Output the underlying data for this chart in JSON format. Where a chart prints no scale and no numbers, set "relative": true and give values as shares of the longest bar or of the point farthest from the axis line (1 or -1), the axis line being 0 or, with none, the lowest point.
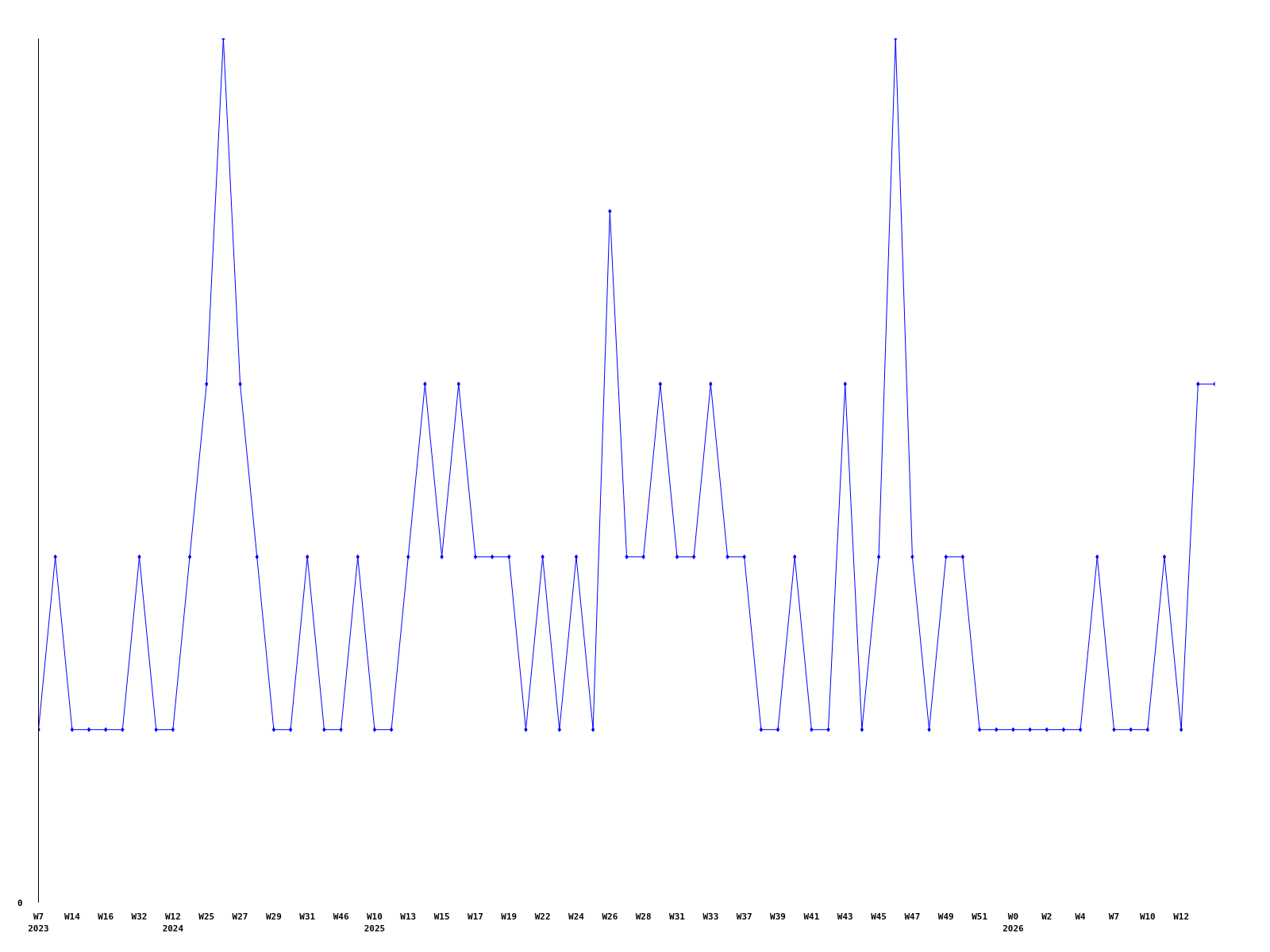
{
  "chart_data": {
    "type": "line",
    "relative": true,
    "color": "#0000ff",
    "marker": "diamond",
    "categories": [
      "W7\n2023",
      null,
      "W14",
      null,
      "W16",
      null,
      "W32",
      null,
      "W12\n2024",
      null,
      "W25",
      null,
      "W27",
      null,
      "W29",
      null,
      "W31",
      null,
      "W46",
      null,
      "W10\n2025",
      null,
      "W13",
      null,
      "W15",
      null,
      "W17",
      null,
      "W19",
      null,
      "W22",
      null,
      "W24",
      null,
      "W26",
      null,
      "W28",
      null,
      "W31",
      null,
      "W33",
      null,
      "W37",
      null,
      "W39",
      null,
      "W41",
      null,
      "W43",
      null,
      "W45",
      null,
      "W47",
      null,
      "W49",
      null,
      "W51",
      null,
      "W0\n2026",
      null,
      "W2",
      null,
      "W4",
      null,
      "W7",
      null,
      "W10",
      null,
      "W12",
      null,
      null
    ],
    "values": [
      0.2,
      0.4,
      0.2,
      0.2,
      0.2,
      0.2,
      0.4,
      0.2,
      0.2,
      0.4,
      0.6,
      1,
      0.6,
      0.4,
      0.2,
      0.2,
      0.4,
      0.2,
      0.2,
      0.4,
      0.2,
      0.2,
      0.4,
      0.6,
      0.4,
      0.6,
      0.4,
      0.4,
      0.4,
      0.2,
      0.4,
      0.2,
      0.4,
      0.2,
      0.8,
      0.4,
      0.4,
      0.6,
      0.4,
      0.4,
      0.6,
      0.4,
      0.4,
      0.2,
      0.2,
      0.4,
      0.2,
      0.2,
      0.6,
      0.2,
      0.4,
      1,
      0.4,
      0.2,
      0.4,
      0.4,
      0.2,
      0.2,
      0.2,
      0.2,
      0.2,
      0.2,
      0.2,
      0.4,
      0.2,
      0.2,
      0.2,
      0.4,
      0.2,
      0.6,
      0.6
    ],
    "annotations": [
      "0"
    ]
  }
}
